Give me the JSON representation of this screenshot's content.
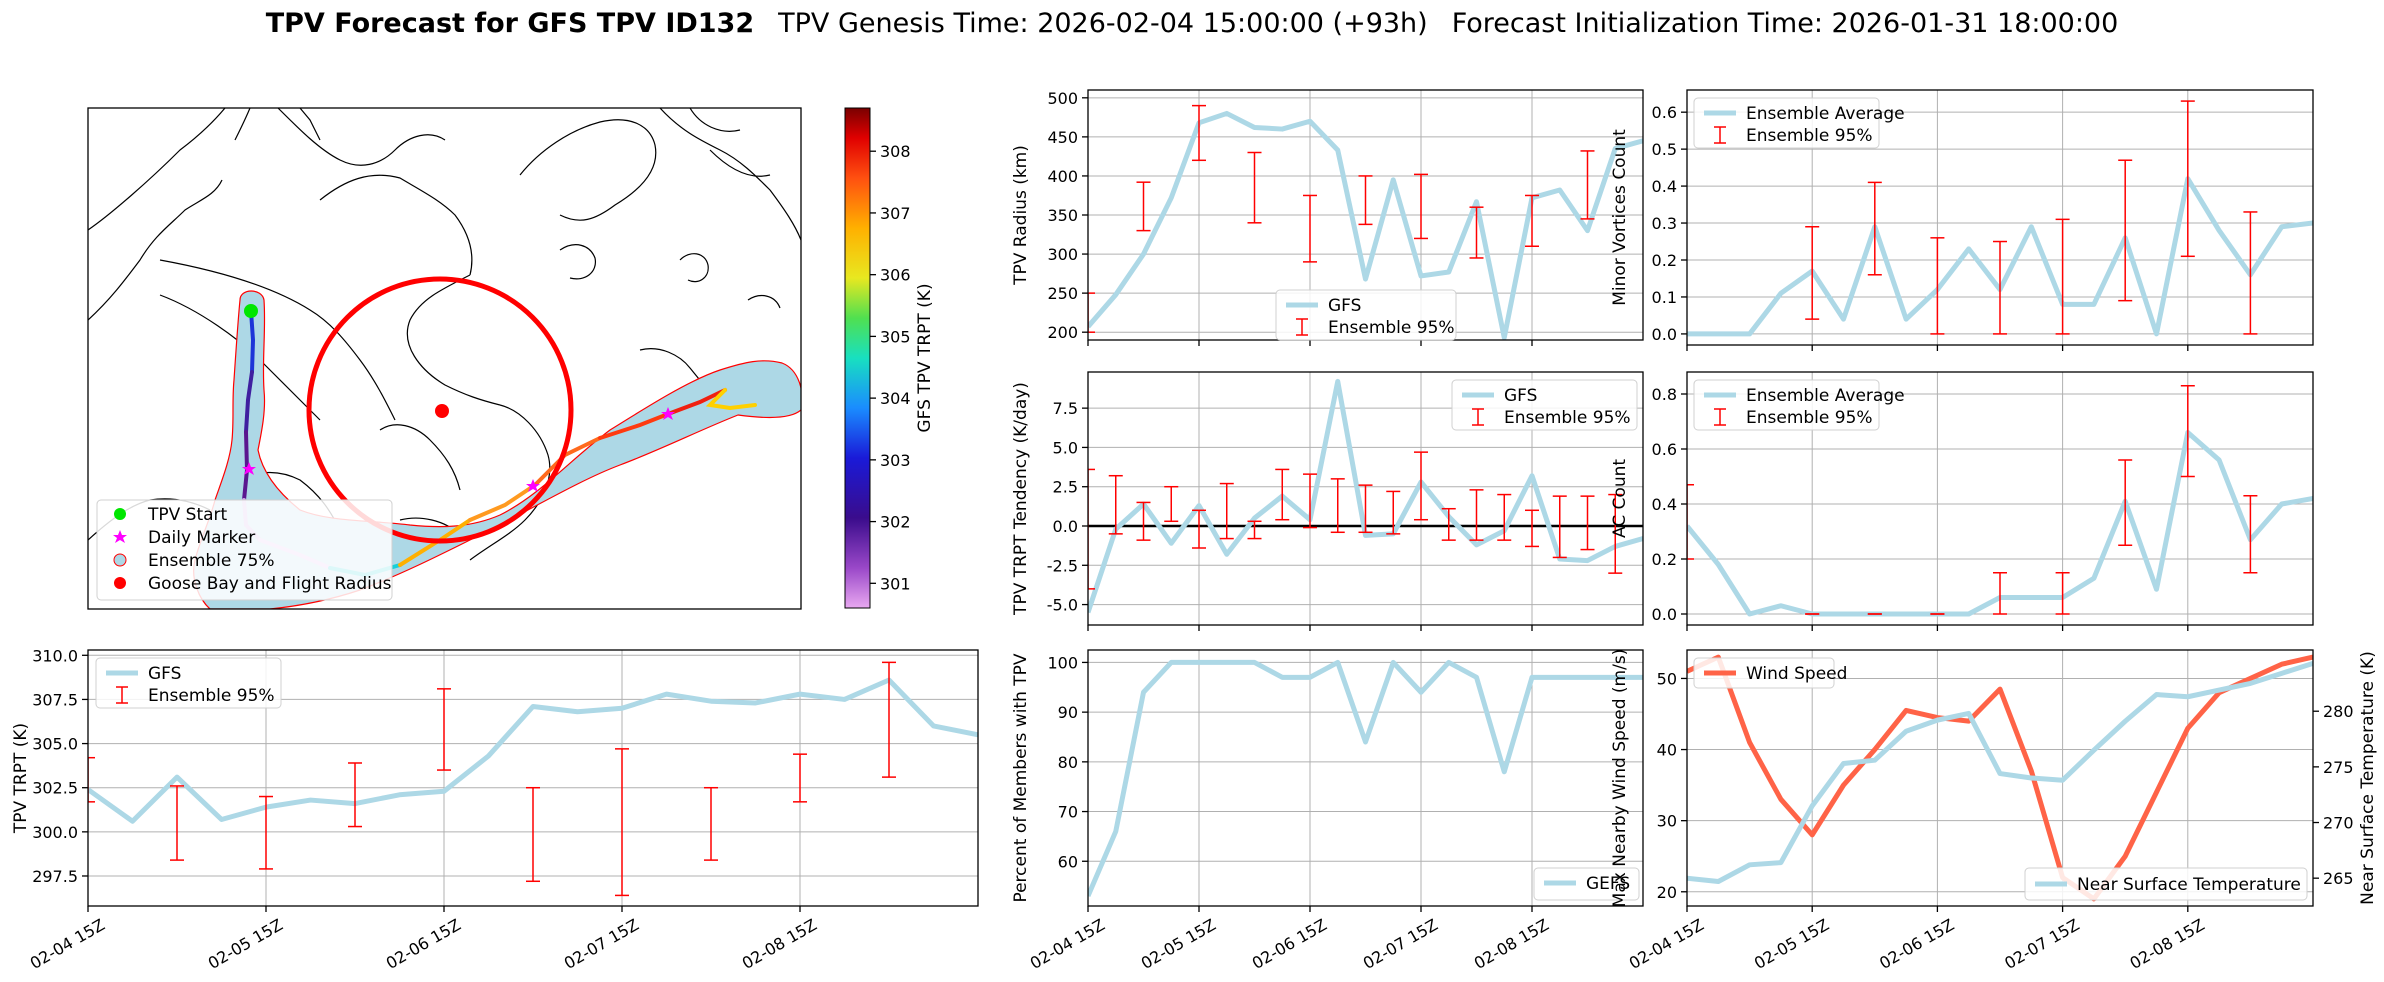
{
  "title": {
    "bold": "TPV Forecast for GFS TPV ID132",
    "genesis": "TPV Genesis Time: 2026-02-04 15:00:00 (+93h)",
    "init": "Forecast Initialization Time: 2026-01-31 18:00:00"
  },
  "x_ticks": [
    "02-04 15Z",
    "02-05 15Z",
    "02-06 15Z",
    "02-07 15Z",
    "02-08 15Z"
  ],
  "colors": {
    "gfs": "#add8e6",
    "error": "#ff0000",
    "wind": "#ff6347",
    "temp_axis": "#4169e1"
  },
  "map": {
    "colorbar_label": "GFS TPV TRPT (K)",
    "colorbar_ticks": [
      "301",
      "302",
      "303",
      "304",
      "305",
      "306",
      "307",
      "308"
    ],
    "legend": [
      "TPV Start",
      "Daily Marker",
      "Ensemble 75%",
      "Goose Bay and Flight Radius"
    ]
  },
  "chart_data": [
    {
      "id": "radius",
      "type": "line",
      "ylabel": "TPV Radius (km)",
      "ylim": [
        190,
        510
      ],
      "yticks": [
        200,
        250,
        300,
        350,
        400,
        450,
        500
      ],
      "legend_labels": [
        "GFS",
        "Ensemble 95%"
      ],
      "legend_pos": "bottom-center",
      "x": [
        0,
        1,
        2,
        3,
        4,
        5,
        6,
        7,
        8,
        9,
        10,
        11,
        12,
        13,
        14,
        15,
        16,
        17,
        18,
        19,
        20
      ],
      "values": [
        207,
        248,
        300,
        372,
        468,
        480,
        462,
        460,
        470,
        433,
        268,
        395,
        272,
        277,
        367,
        193,
        372,
        382,
        330,
        435,
        445
      ],
      "errorbars": [
        {
          "x": 0,
          "low": 200,
          "high": 250
        },
        {
          "x": 2,
          "low": 330,
          "high": 392
        },
        {
          "x": 4,
          "low": 420,
          "high": 490
        },
        {
          "x": 6,
          "low": 340,
          "high": 430
        },
        {
          "x": 8,
          "low": 290,
          "high": 375
        },
        {
          "x": 10,
          "low": 338,
          "high": 400
        },
        {
          "x": 12,
          "low": 320,
          "high": 402
        },
        {
          "x": 14,
          "low": 295,
          "high": 360
        },
        {
          "x": 16,
          "low": 310,
          "high": 375
        },
        {
          "x": 18,
          "low": 345,
          "high": 432
        }
      ]
    },
    {
      "id": "minor",
      "type": "line",
      "ylabel": "Minor Vortices Count",
      "ylim": [
        -0.03,
        0.66
      ],
      "yticks": [
        0.0,
        0.1,
        0.2,
        0.3,
        0.4,
        0.5,
        0.6
      ],
      "tick_decimals": 1,
      "legend_labels": [
        "Ensemble Average",
        "Ensemble 95%"
      ],
      "legend_pos": "top-left",
      "x": [
        0,
        1,
        2,
        3,
        4,
        5,
        6,
        7,
        8,
        9,
        10,
        11,
        12,
        13,
        14,
        15,
        16,
        17,
        18,
        19,
        20
      ],
      "values": [
        0,
        0,
        0,
        0.11,
        0.17,
        0.04,
        0.29,
        0.04,
        0.12,
        0.23,
        0.12,
        0.29,
        0.08,
        0.08,
        0.26,
        0.0,
        0.42,
        0.28,
        0.16,
        0.29,
        0.3
      ],
      "errorbars": [
        {
          "x": 4,
          "low": 0.04,
          "high": 0.29
        },
        {
          "x": 6,
          "low": 0.16,
          "high": 0.41
        },
        {
          "x": 8,
          "low": 0.0,
          "high": 0.26
        },
        {
          "x": 10,
          "low": 0.0,
          "high": 0.25
        },
        {
          "x": 12,
          "low": 0.0,
          "high": 0.31
        },
        {
          "x": 14,
          "low": 0.09,
          "high": 0.47
        },
        {
          "x": 16,
          "low": 0.21,
          "high": 0.63
        },
        {
          "x": 18,
          "low": 0.0,
          "high": 0.33
        }
      ]
    },
    {
      "id": "tendency",
      "type": "line",
      "ylabel": "TPV TRPT Tendency (K/day)",
      "ylim": [
        -6.3,
        9.8
      ],
      "yticks": [
        -5.0,
        -2.5,
        0.0,
        2.5,
        5.0,
        7.5
      ],
      "tick_decimals": 1,
      "zero_line": true,
      "legend_labels": [
        "GFS",
        "Ensemble 95%"
      ],
      "legend_pos": "top-right",
      "x": [
        0,
        1,
        2,
        3,
        4,
        5,
        6,
        7,
        8,
        9,
        10,
        11,
        12,
        13,
        14,
        15,
        16,
        17,
        18,
        19,
        20
      ],
      "values": [
        -5.5,
        -0.2,
        1.4,
        -1.1,
        1.3,
        -1.8,
        0.5,
        1.9,
        0.4,
        9.2,
        -0.6,
        -0.5,
        2.8,
        0.6,
        -1.2,
        -0.3,
        3.2,
        -2.1,
        -2.2,
        -1.3,
        -0.8
      ],
      "errorbars": [
        {
          "x": 0,
          "low": -4.0,
          "high": 3.6
        },
        {
          "x": 1,
          "low": -0.5,
          "high": 3.2
        },
        {
          "x": 2,
          "low": -0.9,
          "high": 1.5
        },
        {
          "x": 3,
          "low": 0.3,
          "high": 2.5
        },
        {
          "x": 4,
          "low": -1.4,
          "high": 1.0
        },
        {
          "x": 5,
          "low": -0.8,
          "high": 2.7
        },
        {
          "x": 6,
          "low": -0.8,
          "high": 0.3
        },
        {
          "x": 7,
          "low": 0.4,
          "high": 3.6
        },
        {
          "x": 8,
          "low": -0.1,
          "high": 3.3
        },
        {
          "x": 9,
          "low": -0.4,
          "high": 3.0
        },
        {
          "x": 10,
          "low": -0.4,
          "high": 2.6
        },
        {
          "x": 11,
          "low": -0.5,
          "high": 2.2
        },
        {
          "x": 12,
          "low": 0.4,
          "high": 4.7
        },
        {
          "x": 13,
          "low": -0.9,
          "high": 1.1
        },
        {
          "x": 14,
          "low": -0.9,
          "high": 2.3
        },
        {
          "x": 15,
          "low": -0.9,
          "high": 2.0
        },
        {
          "x": 16,
          "low": -1.3,
          "high": 1.0
        },
        {
          "x": 17,
          "low": -2.0,
          "high": 1.9
        },
        {
          "x": 18,
          "low": -1.5,
          "high": 1.9
        },
        {
          "x": 19,
          "low": -3.0,
          "high": 2.0
        }
      ]
    },
    {
      "id": "ac",
      "type": "line",
      "ylabel": "AC Count",
      "ylim": [
        -0.04,
        0.88
      ],
      "yticks": [
        0.0,
        0.2,
        0.4,
        0.6,
        0.8
      ],
      "tick_decimals": 1,
      "legend_labels": [
        "Ensemble Average",
        "Ensemble 95%"
      ],
      "legend_pos": "top-left",
      "x": [
        0,
        1,
        2,
        3,
        4,
        5,
        6,
        7,
        8,
        9,
        10,
        11,
        12,
        13,
        14,
        15,
        16,
        17,
        18,
        19,
        20
      ],
      "values": [
        0.32,
        0.18,
        0.0,
        0.03,
        0.0,
        0.0,
        0.0,
        0.0,
        0.0,
        0.0,
        0.06,
        0.06,
        0.06,
        0.13,
        0.41,
        0.09,
        0.66,
        0.56,
        0.27,
        0.4,
        0.42
      ],
      "errorbars": [
        {
          "x": 0,
          "low": 0.2,
          "high": 0.47
        },
        {
          "x": 4,
          "low": 0.0,
          "high": 0.0
        },
        {
          "x": 6,
          "low": 0.0,
          "high": 0.0
        },
        {
          "x": 8,
          "low": 0.0,
          "high": 0.0
        },
        {
          "x": 10,
          "low": 0.0,
          "high": 0.15
        },
        {
          "x": 12,
          "low": 0.0,
          "high": 0.15
        },
        {
          "x": 14,
          "low": 0.25,
          "high": 0.56
        },
        {
          "x": 16,
          "low": 0.5,
          "high": 0.83
        },
        {
          "x": 18,
          "low": 0.15,
          "high": 0.43
        }
      ]
    },
    {
      "id": "trpt",
      "type": "line",
      "ylabel": "TPV TRPT (K)",
      "ylim": [
        295.8,
        310.3
      ],
      "yticks": [
        297.5,
        300.0,
        302.5,
        305.0,
        307.5,
        310.0
      ],
      "tick_decimals": 1,
      "legend_labels": [
        "GFS",
        "Ensemble 95%"
      ],
      "legend_pos": "top-left",
      "x": [
        0,
        1,
        2,
        3,
        4,
        5,
        6,
        7,
        8,
        9,
        10,
        11,
        12,
        13,
        14,
        15,
        16,
        17,
        18,
        19,
        20
      ],
      "values": [
        302.4,
        300.6,
        303.1,
        300.7,
        301.4,
        301.8,
        301.6,
        302.1,
        302.3,
        304.3,
        307.1,
        306.8,
        307.0,
        307.8,
        307.4,
        307.3,
        307.8,
        307.5,
        308.6,
        306.0,
        305.5
      ],
      "errorbars": [
        {
          "x": 0,
          "low": 301.7,
          "high": 304.2
        },
        {
          "x": 2,
          "low": 298.4,
          "high": 302.6
        },
        {
          "x": 4,
          "low": 297.9,
          "high": 302.0
        },
        {
          "x": 6,
          "low": 300.3,
          "high": 303.9
        },
        {
          "x": 8,
          "low": 303.5,
          "high": 308.1
        },
        {
          "x": 10,
          "low": 297.2,
          "high": 302.5
        },
        {
          "x": 12,
          "low": 296.4,
          "high": 304.7
        },
        {
          "x": 14,
          "low": 298.4,
          "high": 302.5
        },
        {
          "x": 16,
          "low": 301.7,
          "high": 304.4
        },
        {
          "x": 18,
          "low": 303.1,
          "high": 309.6
        }
      ]
    },
    {
      "id": "members",
      "type": "line",
      "ylabel": "Percent of Members with TPV",
      "ylim": [
        51,
        102.5
      ],
      "yticks": [
        60,
        70,
        80,
        90,
        100
      ],
      "legend_labels": [
        "GEFS"
      ],
      "legend_pos": "bottom-right",
      "x": [
        0,
        1,
        2,
        3,
        4,
        5,
        6,
        7,
        8,
        9,
        10,
        11,
        12,
        13,
        14,
        15,
        16,
        17,
        18,
        19,
        20
      ],
      "values": [
        53,
        66,
        94,
        100,
        100,
        100,
        100,
        97,
        97,
        100,
        84,
        100,
        94,
        100,
        97,
        78,
        97,
        97,
        97,
        97,
        97
      ]
    },
    {
      "id": "wind",
      "type": "line",
      "ylabel": "Max Nearby Wind Speed (m/s)",
      "ylabel_right": "Near Surface Temperature (K)",
      "ylim": [
        18,
        54
      ],
      "yticks": [
        20,
        30,
        40,
        50
      ],
      "ylim_right": [
        262.5,
        285.5
      ],
      "yticks_right": [
        265,
        270,
        275,
        280
      ],
      "legend_labels": [
        "Wind Speed",
        "Near Surface Temperature"
      ],
      "legend_pos": "top-left / bottom-right",
      "x": [
        0,
        1,
        2,
        3,
        4,
        5,
        6,
        7,
        8,
        9,
        10,
        11,
        12,
        13,
        14,
        15,
        16,
        17,
        18,
        19,
        20
      ],
      "values": [
        51,
        53,
        41,
        33,
        28,
        35,
        40,
        45.5,
        44.5,
        44,
        48.5,
        37,
        22,
        19,
        25,
        34,
        43,
        48,
        50,
        52,
        53
      ],
      "values_right": [
        265,
        264.7,
        266.2,
        266.4,
        271.5,
        275.3,
        275.6,
        278.2,
        279.2,
        279.8,
        274.4,
        274.0,
        273.8,
        276.5,
        279.1,
        281.5,
        281.3,
        281.9,
        282.5,
        283.4,
        284.3
      ]
    }
  ]
}
